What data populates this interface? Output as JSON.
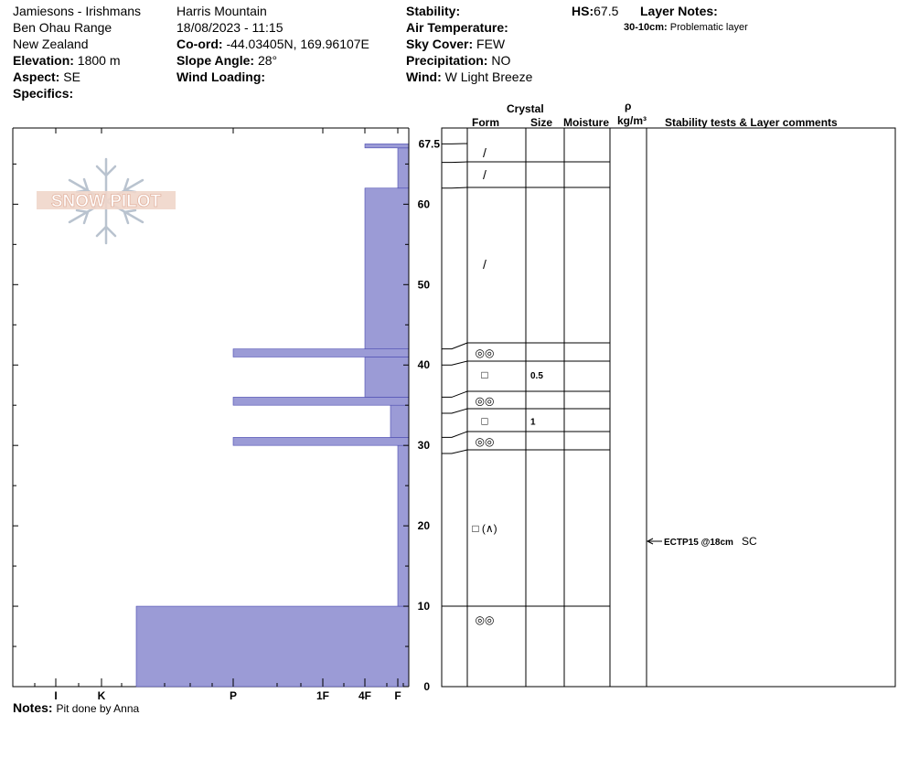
{
  "header": {
    "col1": [
      "Jamiesons - Irishmans",
      "Ben Ohau Range",
      "New Zealand"
    ],
    "elevation_label": "Elevation:",
    "elevation_value": "1800 m",
    "aspect_label": "Aspect:",
    "aspect_value": "SE",
    "specifics_label": "Specifics:",
    "location": "Harris Mountain",
    "datetime": "18/08/2023 - 11:15",
    "coord_label": "Co-ord:",
    "coord_value": "-44.03405N, 169.96107E",
    "slope_label": "Slope Angle:",
    "slope_value": "28°",
    "wind_loading_label": "Wind Loading:",
    "stability_label": "Stability:",
    "air_temp_label": "Air Temperature:",
    "sky_label": "Sky Cover:",
    "sky_value": "FEW",
    "precip_label": "Precipitation:",
    "precip_value": "NO",
    "wind_label": "Wind:",
    "wind_value": "W Light Breeze",
    "hs_label": "HS:",
    "hs_value": "67.5",
    "layer_notes_label": "Layer Notes:",
    "layer_note_depth": "30-10cm:",
    "layer_note_text": "Problematic layer"
  },
  "logo_text": "SNOW PILOT",
  "notes_label": "Notes:",
  "notes_text": "Pit done by Anna",
  "columns": {
    "crystal": "Crystal",
    "form": "Form",
    "size": "Size",
    "moisture": "Moisture",
    "rho": "ρ",
    "density_unit": "kg/m³",
    "comments": "Stability tests & Layer comments"
  },
  "colors": {
    "hardness_fill": "#9b9bd6",
    "hardness_stroke": "#4a4ab0"
  },
  "chart_data": {
    "type": "bar",
    "orientation": "horizontal",
    "description_of_axes": "snow pit hand-hardness profile",
    "y_ticks": [
      0,
      10,
      20,
      30,
      40,
      50,
      60
    ],
    "y_top_label": "67.5",
    "y_range": [
      0,
      67.5
    ],
    "hardness_ticks": [
      "I",
      "K",
      "P",
      "1F",
      "4F",
      "F"
    ],
    "hardness_scale_order": [
      "F",
      "4F",
      "1F",
      "P",
      "K",
      "I"
    ],
    "hardness_profile": [
      {
        "bottom": 0,
        "top": 10,
        "hardness": "K+"
      },
      {
        "bottom": 10,
        "top": 30,
        "hardness": "F"
      },
      {
        "bottom": 30,
        "top": 31,
        "hardness": "P"
      },
      {
        "bottom": 31,
        "top": 35,
        "hardness": "F+"
      },
      {
        "bottom": 35,
        "top": 36,
        "hardness": "P"
      },
      {
        "bottom": 36,
        "top": 41,
        "hardness": "4F"
      },
      {
        "bottom": 41,
        "top": 42,
        "hardness": "P"
      },
      {
        "bottom": 42,
        "top": 62,
        "hardness": "4F"
      },
      {
        "bottom": 62,
        "top": 67,
        "hardness": "F"
      },
      {
        "bottom": 67,
        "top": 67.5,
        "hardness": "4F"
      }
    ],
    "layer_boundaries": [
      67.5,
      65.2,
      62,
      42,
      40,
      36,
      34,
      31,
      29,
      10,
      0
    ],
    "layers": [
      {
        "top": 67.5,
        "bottom": 65.2,
        "form": "/",
        "size": ""
      },
      {
        "top": 65.2,
        "bottom": 62,
        "form": "/",
        "size": ""
      },
      {
        "top": 62,
        "bottom": 42,
        "form": "/",
        "size": ""
      },
      {
        "top": 42,
        "bottom": 40,
        "form": "◎◎",
        "size": ""
      },
      {
        "top": 40,
        "bottom": 36,
        "form": "□",
        "size": "0.5"
      },
      {
        "top": 36,
        "bottom": 34,
        "form": "◎◎",
        "size": ""
      },
      {
        "top": 34,
        "bottom": 31,
        "form": "□",
        "size": "1"
      },
      {
        "top": 31,
        "bottom": 29,
        "form": "◎◎",
        "size": ""
      },
      {
        "top": 29,
        "bottom": 10,
        "form": "□ (∧)",
        "size": ""
      },
      {
        "top": 10,
        "bottom": 0,
        "form": "◎◎",
        "size": ""
      }
    ],
    "tests": [
      {
        "depth": 18,
        "result": "ECTP15 @18cm",
        "shear": "SC"
      }
    ]
  }
}
